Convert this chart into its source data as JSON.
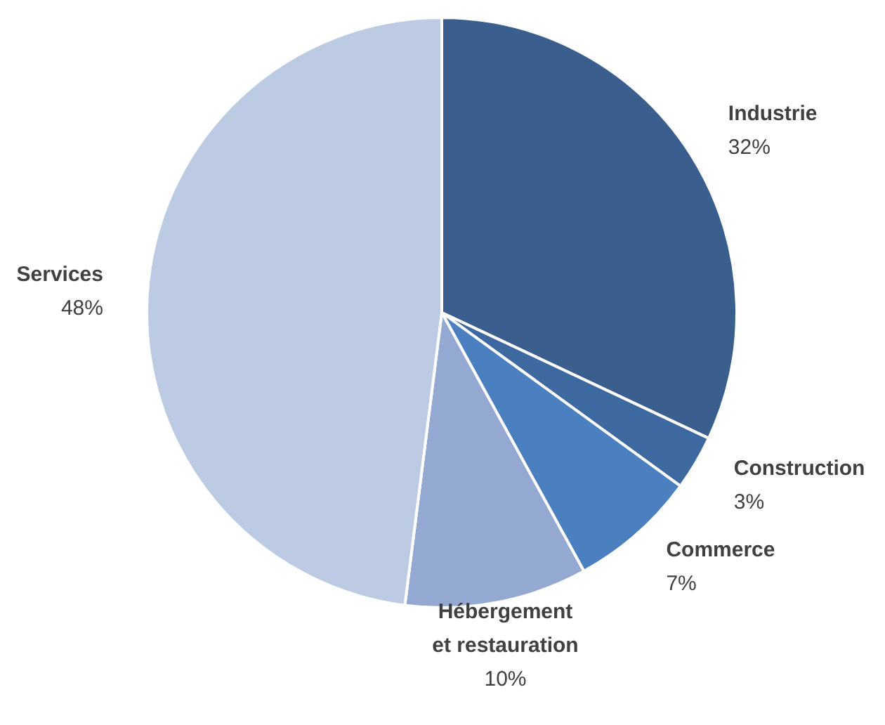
{
  "chart_data": {
    "type": "pie",
    "categories": [
      "Industrie",
      "Construction",
      "Commerce",
      "Hébergement et restauration",
      "Services"
    ],
    "values": [
      32,
      3,
      7,
      10,
      48
    ],
    "colors": [
      "#3a5f8f",
      "#3d69a0",
      "#4a7fc0",
      "#94a9d2",
      "#bccbe3"
    ],
    "value_labels": [
      "32%",
      "3%",
      "7%",
      "10%",
      "48%"
    ]
  }
}
